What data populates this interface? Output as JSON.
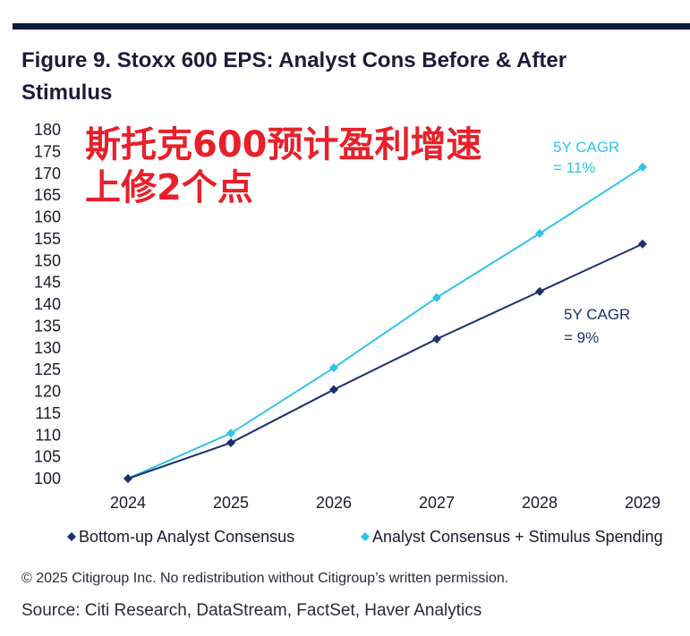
{
  "header": {
    "title_line1": "Figure 9. Stoxx 600 EPS: Analyst Cons Before & After",
    "title_line2": "Stimulus"
  },
  "overlay": {
    "line1": "斯托克600预计盈利增速",
    "line2": "上修2个点"
  },
  "footer": {
    "copyright": "© 2025 Citigroup Inc. No redistribution without Citigroup’s written permission.",
    "source": "Source: Citi Research, DataStream, FactSet, Haver Analytics"
  },
  "colors": {
    "bottom_up": "#1b2f6e",
    "stimulus": "#2ec4e8",
    "overlay_text": "#e8202a"
  },
  "chart_data": {
    "type": "line",
    "x": [
      "2024",
      "2025",
      "2026",
      "2027",
      "2028",
      "2029"
    ],
    "ylim": [
      100,
      180
    ],
    "yticks": [
      100,
      105,
      110,
      115,
      120,
      125,
      130,
      135,
      140,
      145,
      150,
      155,
      160,
      165,
      170,
      175,
      180
    ],
    "grid": false,
    "legend_position": "bottom",
    "series": [
      {
        "name": "Bottom-up Analyst Consensus",
        "values": [
          100,
          108.2,
          120.4,
          132,
          142.9,
          153.8
        ],
        "color": "#1b2f6e",
        "annotation_line1": "5Y CAGR",
        "annotation_line2": "= 9%"
      },
      {
        "name": "Analyst Consensus + Stimulus Spending",
        "values": [
          100,
          110.4,
          125.4,
          141.5,
          156.2,
          171.4
        ],
        "color": "#2ec4e8",
        "annotation_line1": "5Y CAGR",
        "annotation_line2": "= 11%"
      }
    ]
  }
}
